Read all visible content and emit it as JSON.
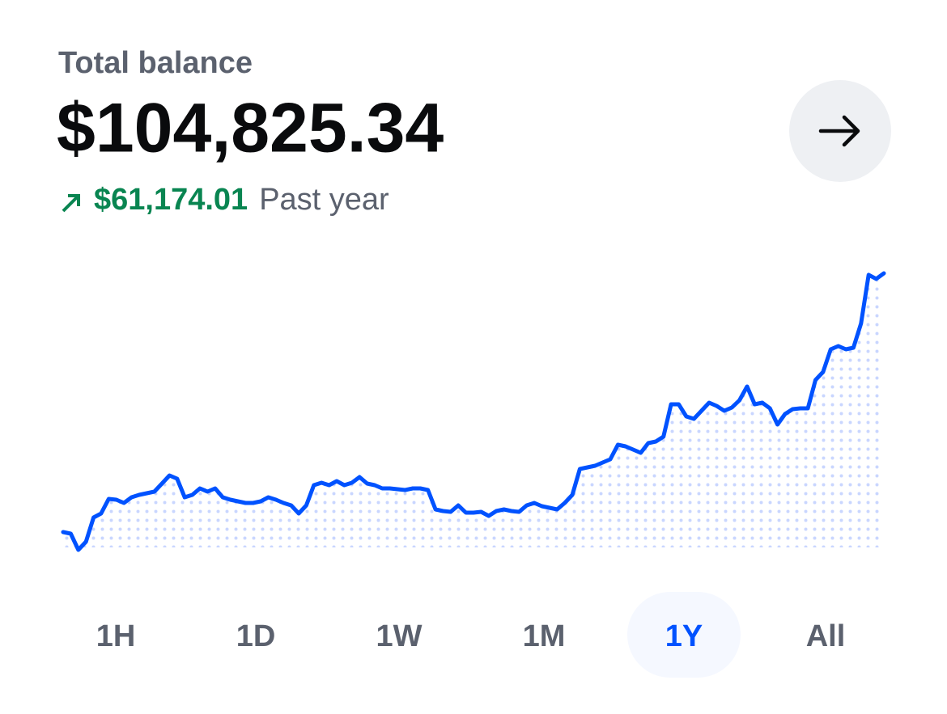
{
  "header": {
    "label": "Total balance",
    "balance": "$104,825.34",
    "change": "$61,174.01",
    "period": "Past year"
  },
  "chart_data": {
    "type": "line",
    "color": "#0052ff",
    "fill_color": "#c9d6ff",
    "values": [
      43651,
      43269,
      39445,
      41357,
      47093,
      48049,
      51490,
      51299,
      50534,
      51873,
      52446,
      52829,
      53211,
      55123,
      57035,
      56270,
      51873,
      52446,
      53976,
      53211,
      53976,
      51873,
      51299,
      50917,
      50534,
      50534,
      50917,
      51873,
      51299,
      50534,
      49961,
      48049,
      49961,
      54741,
      55314,
      54741,
      55697,
      54741,
      55314,
      56653,
      55123,
      54741,
      53976,
      53976,
      53785,
      53593,
      53976,
      53976,
      53593,
      49005,
      48622,
      48431,
      49961,
      48240,
      48240,
      48431,
      47475,
      48622,
      49005,
      48622,
      48431,
      49961,
      50534,
      49769,
      49387,
      49005,
      50534,
      52446,
      58565,
      58947,
      59329,
      60093,
      60859,
      64301,
      63918,
      63153,
      62389,
      64683,
      65065,
      66213,
      73861,
      73861,
      70993,
      70419,
      72331,
      74243,
      73478,
      72331,
      73096,
      74817,
      78067,
      73861,
      74243,
      72905,
      69081,
      71566,
      72713,
      72905,
      72905,
      79597,
      81509,
      86862,
      87627,
      86862,
      87245,
      92981,
      104453,
      103497,
      104825.34
    ]
  },
  "tabs": [
    "1H",
    "1D",
    "1W",
    "1M",
    "1Y",
    "All"
  ],
  "selected_tab": "1Y"
}
